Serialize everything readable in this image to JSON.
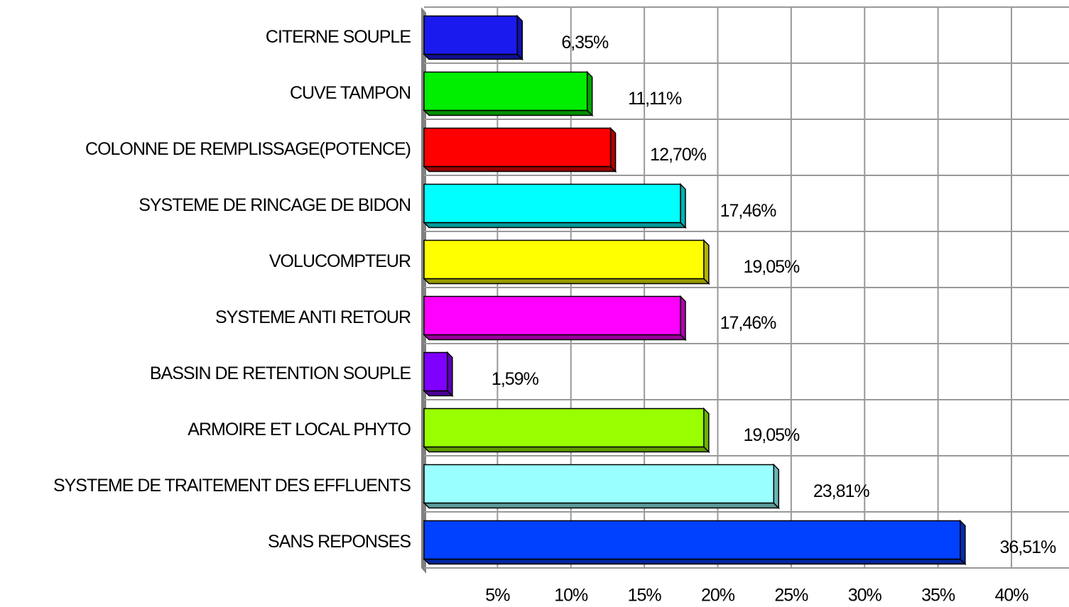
{
  "chart_data": {
    "type": "bar",
    "categories": [
      "CITERNE SOUPLE",
      "CUVE TAMPON",
      "COLONNE DE REMPLISSAGE(POTENCE)",
      "SYSTEME DE RINCAGE DE BIDON",
      "VOLUCOMPTEUR",
      "SYSTEME ANTI RETOUR",
      "BASSIN DE RETENTION SOUPLE",
      "ARMOIRE ET LOCAL PHYTO",
      "SYSTEME DE TRAITEMENT DES EFFLUENTS",
      "SANS REPONSES"
    ],
    "values": [
      6.35,
      11.11,
      12.7,
      17.46,
      19.05,
      17.46,
      1.59,
      19.05,
      23.81,
      36.51
    ],
    "value_labels": [
      "6,35%",
      "11,11%",
      "12,70%",
      "17,46%",
      "19,05%",
      "17,46%",
      "1,59%",
      "19,05%",
      "23,81%",
      "36,51%"
    ],
    "colors": [
      "#1a1aee",
      "#00ee00",
      "#ff0000",
      "#00ffff",
      "#ffff00",
      "#ff00ff",
      "#8000ff",
      "#99ff00",
      "#99ffff",
      "#0040ff"
    ],
    "xlim": [
      0,
      40
    ],
    "xticks": [
      {
        "value": 5,
        "label": "5%"
      },
      {
        "value": 10,
        "label": "10%"
      },
      {
        "value": 15,
        "label": "15%"
      },
      {
        "value": 20,
        "label": "20%"
      },
      {
        "value": 25,
        "label": "25%"
      },
      {
        "value": 30,
        "label": "30%"
      },
      {
        "value": 35,
        "label": "35%"
      },
      {
        "value": 40,
        "label": "40%"
      }
    ],
    "grid": true
  }
}
